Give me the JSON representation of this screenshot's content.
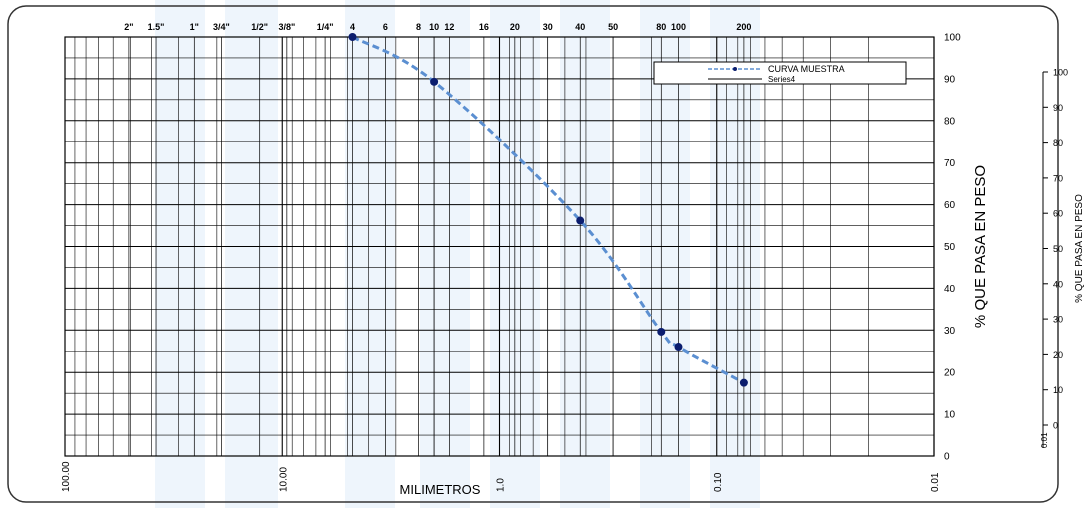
{
  "chart_data": {
    "type": "line",
    "xscale": "log",
    "x_reversed": true,
    "xlim": [
      100,
      0.01
    ],
    "ylim": [
      0,
      100
    ],
    "xlabel": "MILIMETROS",
    "ylabel": "% QUE PASA EN PESO",
    "ylabel_right": "% QUE PASA EN PESO",
    "x_tick_labels": [
      "100.00",
      "10.00",
      "1.0",
      "0.10",
      "0.01"
    ],
    "x_ticks_top": [
      {
        "label": "2\"",
        "mm": 50.8
      },
      {
        "label": "1.5\"",
        "mm": 38.1
      },
      {
        "label": "1\"",
        "mm": 25.4
      },
      {
        "label": "3/4\"",
        "mm": 19.05
      },
      {
        "label": "1/2\"",
        "mm": 12.7
      },
      {
        "label": "3/8\"",
        "mm": 9.525
      },
      {
        "label": "1/4\"",
        "mm": 6.35
      },
      {
        "label": "4",
        "mm": 4.75
      },
      {
        "label": "6",
        "mm": 3.35
      },
      {
        "label": "8",
        "mm": 2.36
      },
      {
        "label": "10",
        "mm": 2.0
      },
      {
        "label": "12",
        "mm": 1.7
      },
      {
        "label": "16",
        "mm": 1.18
      },
      {
        "label": "20",
        "mm": 0.85
      },
      {
        "label": "30",
        "mm": 0.6
      },
      {
        "label": "40",
        "mm": 0.425
      },
      {
        "label": "50",
        "mm": 0.3
      },
      {
        "label": "80",
        "mm": 0.18
      },
      {
        "label": "100",
        "mm": 0.15
      },
      {
        "label": "200",
        "mm": 0.075
      }
    ],
    "y_ticks": [
      0,
      10,
      20,
      30,
      40,
      50,
      60,
      70,
      80,
      90,
      100
    ],
    "right_axis_ticks": [
      0,
      10,
      20,
      30,
      40,
      50,
      60,
      70,
      80,
      90,
      100
    ],
    "right_axis_x_label": "0.01",
    "grid": true,
    "legend_position": "top-right",
    "series": [
      {
        "name": "CURVA MUESTRA",
        "color": "#5b8fd1",
        "marker_color": "#0b1d6e",
        "style": "dashed",
        "x": [
          4.75,
          2.0,
          0.425,
          0.18,
          0.15,
          0.075
        ],
        "y": [
          100,
          89.3,
          56.2,
          29.6,
          26.0,
          17.5
        ]
      },
      {
        "name": "Series4",
        "color": "#000000",
        "style": "solid",
        "x": [],
        "y": []
      }
    ]
  },
  "colors": {
    "watermark": "#cfe3f5",
    "frame": "#333333",
    "grid": "#000000"
  }
}
